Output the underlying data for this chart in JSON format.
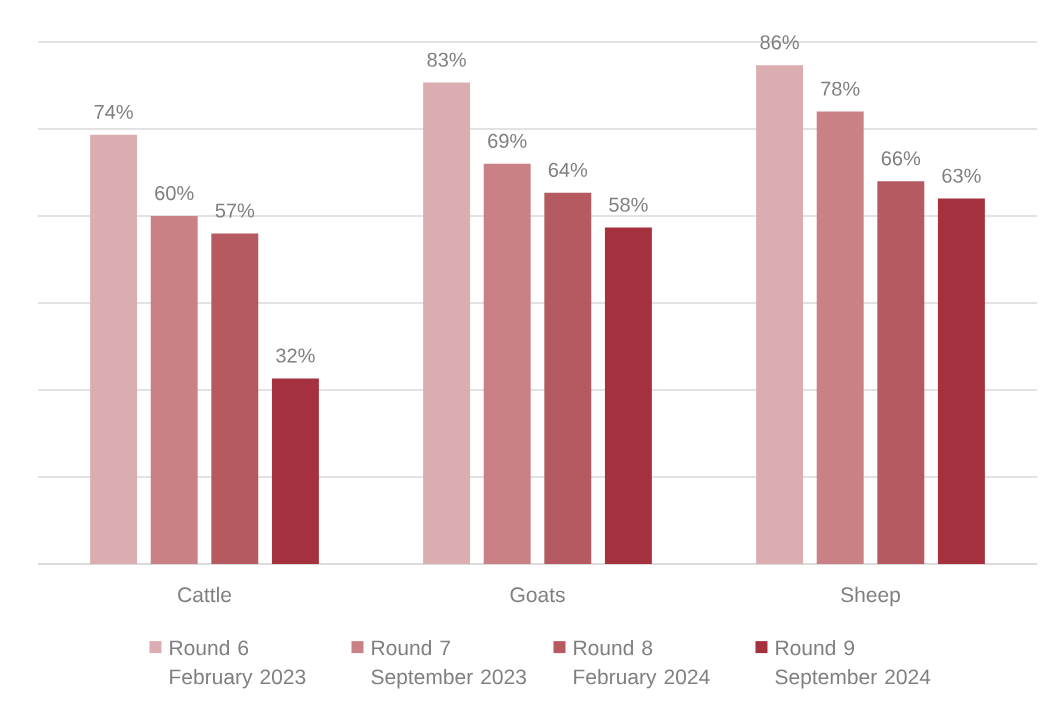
{
  "chart_data": {
    "type": "bar",
    "categories": [
      "Cattle",
      "Goats",
      "Sheep"
    ],
    "series": [
      {
        "name": "Round 6 February 2023",
        "color": "#dbadb1",
        "values": [
          74,
          83,
          86
        ],
        "value_labels": [
          "74%",
          "83%",
          "86%"
        ]
      },
      {
        "name": "Round 7 September 2023",
        "color": "#c98186",
        "values": [
          60,
          69,
          78
        ],
        "value_labels": [
          "60%",
          "69%",
          "78%"
        ]
      },
      {
        "name": "Round 8 February 2024",
        "color": "#b45a60",
        "values": [
          57,
          64,
          66
        ],
        "value_labels": [
          "57%",
          "64%",
          "66%"
        ]
      },
      {
        "name": "Round 9 September 2024",
        "color": "#a5303e",
        "values": [
          32,
          58,
          63
        ],
        "value_labels": [
          "32%",
          "58%",
          "63%"
        ]
      }
    ],
    "ylim": [
      0,
      90
    ],
    "yticks": [
      {
        "value": 0,
        "label": null
      },
      {
        "value": 15,
        "label": null
      },
      {
        "value": 30,
        "label": null
      },
      {
        "value": 45,
        "label": null
      },
      {
        "value": 60,
        "label": null
      },
      {
        "value": 75,
        "label": null
      },
      {
        "value": 90,
        "label": null
      }
    ],
    "grid": "y",
    "legend": "bottom",
    "tick_labels": "x"
  }
}
